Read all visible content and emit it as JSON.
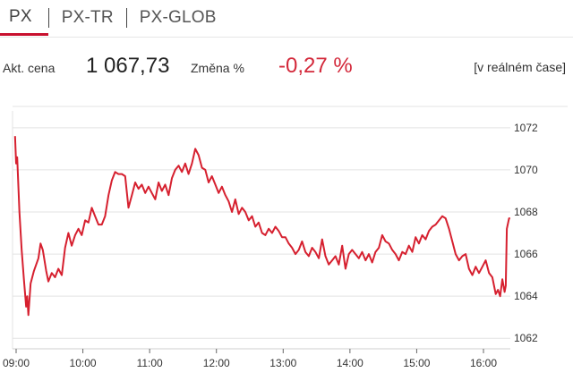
{
  "tabs": [
    {
      "label": "PX",
      "active": true
    },
    {
      "label": "PX-TR",
      "active": false
    },
    {
      "label": "PX-GLOB",
      "active": false
    }
  ],
  "quote": {
    "price_label": "Akt. cena",
    "price_value": "1 067,73",
    "change_label": "Změna %",
    "change_value": "-0,27 %",
    "realtime_label": "[v reálném čase]"
  },
  "colors": {
    "accent": "#c8102e",
    "change_negative": "#d3283a",
    "gridline": "#e3e3e3"
  },
  "chart_data": {
    "type": "line",
    "title": "",
    "xlabel": "",
    "ylabel": "",
    "x_ticks": [
      "09:00",
      "10:00",
      "11:00",
      "12:00",
      "13:00",
      "14:00",
      "15:00",
      "16:00"
    ],
    "y_ticks": [
      1062,
      1064,
      1066,
      1068,
      1070,
      1072
    ],
    "ylim": [
      1061.5,
      1072.8
    ],
    "grid": "horizontal",
    "y_axis_position": "right",
    "series": [
      {
        "name": "",
        "color": "#d6202f",
        "points": [
          [
            "08:59",
            1071.6
          ],
          [
            "09:00",
            1070.3
          ],
          [
            "09:01",
            1070.6
          ],
          [
            "09:03",
            1068.0
          ],
          [
            "09:05",
            1066.2
          ],
          [
            "09:07",
            1064.8
          ],
          [
            "09:09",
            1063.5
          ],
          [
            "09:10",
            1064.0
          ],
          [
            "09:11",
            1063.1
          ],
          [
            "09:13",
            1064.6
          ],
          [
            "09:16",
            1065.2
          ],
          [
            "09:20",
            1065.8
          ],
          [
            "09:22",
            1066.5
          ],
          [
            "09:24",
            1066.2
          ],
          [
            "09:27",
            1065.2
          ],
          [
            "09:29",
            1064.7
          ],
          [
            "09:32",
            1065.1
          ],
          [
            "09:35",
            1064.9
          ],
          [
            "09:38",
            1065.3
          ],
          [
            "09:41",
            1065.0
          ],
          [
            "09:44",
            1066.3
          ],
          [
            "09:47",
            1067.0
          ],
          [
            "09:50",
            1066.4
          ],
          [
            "09:53",
            1066.9
          ],
          [
            "09:56",
            1067.2
          ],
          [
            "09:59",
            1066.9
          ],
          [
            "10:02",
            1067.6
          ],
          [
            "10:05",
            1067.5
          ],
          [
            "10:08",
            1068.2
          ],
          [
            "10:11",
            1067.8
          ],
          [
            "10:14",
            1067.4
          ],
          [
            "10:17",
            1067.4
          ],
          [
            "10:20",
            1067.8
          ],
          [
            "10:23",
            1068.8
          ],
          [
            "10:26",
            1069.5
          ],
          [
            "10:29",
            1069.9
          ],
          [
            "10:32",
            1069.8
          ],
          [
            "10:35",
            1069.8
          ],
          [
            "10:38",
            1069.7
          ],
          [
            "10:41",
            1068.2
          ],
          [
            "10:44",
            1068.8
          ],
          [
            "10:47",
            1069.4
          ],
          [
            "10:50",
            1069.1
          ],
          [
            "10:53",
            1069.3
          ],
          [
            "10:56",
            1068.9
          ],
          [
            "10:59",
            1069.2
          ],
          [
            "11:02",
            1068.9
          ],
          [
            "11:05",
            1068.6
          ],
          [
            "11:08",
            1069.4
          ],
          [
            "11:11",
            1069.0
          ],
          [
            "11:14",
            1069.3
          ],
          [
            "11:17",
            1068.8
          ],
          [
            "11:20",
            1069.6
          ],
          [
            "11:23",
            1070.0
          ],
          [
            "11:26",
            1070.2
          ],
          [
            "11:29",
            1069.9
          ],
          [
            "11:32",
            1070.3
          ],
          [
            "11:35",
            1069.8
          ],
          [
            "11:38",
            1070.3
          ],
          [
            "11:41",
            1071.0
          ],
          [
            "11:44",
            1070.7
          ],
          [
            "11:47",
            1070.1
          ],
          [
            "11:50",
            1070.0
          ],
          [
            "11:53",
            1069.4
          ],
          [
            "11:56",
            1069.7
          ],
          [
            "11:59",
            1069.3
          ],
          [
            "12:02",
            1068.9
          ],
          [
            "12:05",
            1069.2
          ],
          [
            "12:08",
            1068.8
          ],
          [
            "12:11",
            1068.5
          ],
          [
            "12:14",
            1068.0
          ],
          [
            "12:17",
            1068.6
          ],
          [
            "12:20",
            1067.9
          ],
          [
            "12:23",
            1068.2
          ],
          [
            "12:26",
            1068.0
          ],
          [
            "12:29",
            1067.6
          ],
          [
            "12:32",
            1067.8
          ],
          [
            "12:35",
            1067.3
          ],
          [
            "12:38",
            1067.5
          ],
          [
            "12:41",
            1067.0
          ],
          [
            "12:44",
            1066.9
          ],
          [
            "12:47",
            1067.2
          ],
          [
            "12:50",
            1067.0
          ],
          [
            "12:53",
            1067.3
          ],
          [
            "12:56",
            1067.1
          ],
          [
            "12:59",
            1066.8
          ],
          [
            "13:02",
            1066.8
          ],
          [
            "13:05",
            1066.5
          ],
          [
            "13:08",
            1066.3
          ],
          [
            "13:11",
            1066.0
          ],
          [
            "13:14",
            1066.2
          ],
          [
            "13:17",
            1066.6
          ],
          [
            "13:20",
            1066.1
          ],
          [
            "13:23",
            1065.9
          ],
          [
            "13:26",
            1066.3
          ],
          [
            "13:29",
            1066.1
          ],
          [
            "13:32",
            1065.8
          ],
          [
            "13:35",
            1066.7
          ],
          [
            "13:38",
            1065.9
          ],
          [
            "13:41",
            1065.5
          ],
          [
            "13:44",
            1065.7
          ],
          [
            "13:47",
            1065.9
          ],
          [
            "13:50",
            1065.5
          ],
          [
            "13:53",
            1066.4
          ],
          [
            "13:56",
            1065.3
          ],
          [
            "13:59",
            1066.0
          ],
          [
            "14:02",
            1066.2
          ],
          [
            "14:05",
            1066.0
          ],
          [
            "14:08",
            1065.8
          ],
          [
            "14:11",
            1066.1
          ],
          [
            "14:14",
            1065.7
          ],
          [
            "14:17",
            1066.0
          ],
          [
            "14:20",
            1065.6
          ],
          [
            "14:23",
            1066.1
          ],
          [
            "14:26",
            1066.3
          ],
          [
            "14:29",
            1066.9
          ],
          [
            "14:32",
            1066.6
          ],
          [
            "14:35",
            1066.5
          ],
          [
            "14:38",
            1066.2
          ],
          [
            "14:41",
            1066.0
          ],
          [
            "14:44",
            1065.7
          ],
          [
            "14:47",
            1066.1
          ],
          [
            "14:50",
            1066.0
          ],
          [
            "14:53",
            1066.4
          ],
          [
            "14:56",
            1066.1
          ],
          [
            "14:59",
            1066.8
          ],
          [
            "15:02",
            1066.5
          ],
          [
            "15:05",
            1066.9
          ],
          [
            "15:08",
            1066.7
          ],
          [
            "15:11",
            1067.1
          ],
          [
            "15:14",
            1067.3
          ],
          [
            "15:17",
            1067.4
          ],
          [
            "15:20",
            1067.6
          ],
          [
            "15:23",
            1067.8
          ],
          [
            "15:26",
            1067.7
          ],
          [
            "15:29",
            1067.2
          ],
          [
            "15:32",
            1066.6
          ],
          [
            "15:35",
            1066.0
          ],
          [
            "15:38",
            1065.7
          ],
          [
            "15:41",
            1065.9
          ],
          [
            "15:44",
            1066.0
          ],
          [
            "15:47",
            1065.3
          ],
          [
            "15:50",
            1065.0
          ],
          [
            "15:53",
            1065.4
          ],
          [
            "15:56",
            1065.1
          ],
          [
            "15:59",
            1065.4
          ],
          [
            "16:02",
            1065.7
          ],
          [
            "16:05",
            1065.1
          ],
          [
            "16:08",
            1064.9
          ],
          [
            "16:11",
            1064.1
          ],
          [
            "16:13",
            1064.3
          ],
          [
            "16:15",
            1064.0
          ],
          [
            "16:17",
            1064.8
          ],
          [
            "16:19",
            1064.2
          ],
          [
            "16:20",
            1064.5
          ],
          [
            "16:21",
            1067.2
          ],
          [
            "16:23",
            1067.7
          ],
          [
            "16:24",
            1067.7
          ]
        ]
      }
    ]
  }
}
